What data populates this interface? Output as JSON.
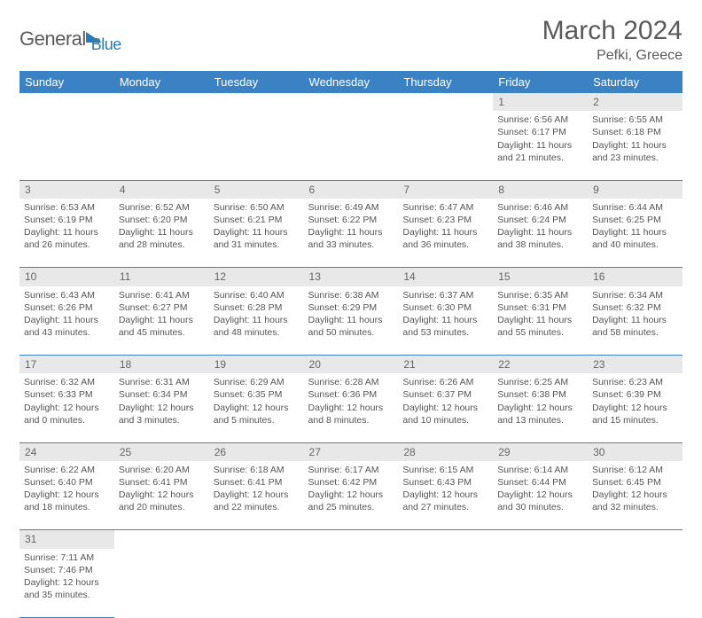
{
  "logo": {
    "text1": "General",
    "text2": "Blue"
  },
  "title": "March 2024",
  "location": "Pefki, Greece",
  "colors": {
    "header_bg": "#3b82c4",
    "header_text": "#ffffff",
    "daynum_bg": "#e8e8e8",
    "cell_border": "#3b82c4",
    "text": "#555555",
    "logo_blue": "#2a7ab8"
  },
  "days_of_week": [
    "Sunday",
    "Monday",
    "Tuesday",
    "Wednesday",
    "Thursday",
    "Friday",
    "Saturday"
  ],
  "weeks": [
    [
      null,
      null,
      null,
      null,
      null,
      {
        "n": "1",
        "sunrise": "6:56 AM",
        "sunset": "6:17 PM",
        "daylight": "11 hours and 21 minutes."
      },
      {
        "n": "2",
        "sunrise": "6:55 AM",
        "sunset": "6:18 PM",
        "daylight": "11 hours and 23 minutes."
      }
    ],
    [
      {
        "n": "3",
        "sunrise": "6:53 AM",
        "sunset": "6:19 PM",
        "daylight": "11 hours and 26 minutes."
      },
      {
        "n": "4",
        "sunrise": "6:52 AM",
        "sunset": "6:20 PM",
        "daylight": "11 hours and 28 minutes."
      },
      {
        "n": "5",
        "sunrise": "6:50 AM",
        "sunset": "6:21 PM",
        "daylight": "11 hours and 31 minutes."
      },
      {
        "n": "6",
        "sunrise": "6:49 AM",
        "sunset": "6:22 PM",
        "daylight": "11 hours and 33 minutes."
      },
      {
        "n": "7",
        "sunrise": "6:47 AM",
        "sunset": "6:23 PM",
        "daylight": "11 hours and 36 minutes."
      },
      {
        "n": "8",
        "sunrise": "6:46 AM",
        "sunset": "6:24 PM",
        "daylight": "11 hours and 38 minutes."
      },
      {
        "n": "9",
        "sunrise": "6:44 AM",
        "sunset": "6:25 PM",
        "daylight": "11 hours and 40 minutes."
      }
    ],
    [
      {
        "n": "10",
        "sunrise": "6:43 AM",
        "sunset": "6:26 PM",
        "daylight": "11 hours and 43 minutes."
      },
      {
        "n": "11",
        "sunrise": "6:41 AM",
        "sunset": "6:27 PM",
        "daylight": "11 hours and 45 minutes."
      },
      {
        "n": "12",
        "sunrise": "6:40 AM",
        "sunset": "6:28 PM",
        "daylight": "11 hours and 48 minutes."
      },
      {
        "n": "13",
        "sunrise": "6:38 AM",
        "sunset": "6:29 PM",
        "daylight": "11 hours and 50 minutes."
      },
      {
        "n": "14",
        "sunrise": "6:37 AM",
        "sunset": "6:30 PM",
        "daylight": "11 hours and 53 minutes."
      },
      {
        "n": "15",
        "sunrise": "6:35 AM",
        "sunset": "6:31 PM",
        "daylight": "11 hours and 55 minutes."
      },
      {
        "n": "16",
        "sunrise": "6:34 AM",
        "sunset": "6:32 PM",
        "daylight": "11 hours and 58 minutes."
      }
    ],
    [
      {
        "n": "17",
        "sunrise": "6:32 AM",
        "sunset": "6:33 PM",
        "daylight": "12 hours and 0 minutes."
      },
      {
        "n": "18",
        "sunrise": "6:31 AM",
        "sunset": "6:34 PM",
        "daylight": "12 hours and 3 minutes."
      },
      {
        "n": "19",
        "sunrise": "6:29 AM",
        "sunset": "6:35 PM",
        "daylight": "12 hours and 5 minutes."
      },
      {
        "n": "20",
        "sunrise": "6:28 AM",
        "sunset": "6:36 PM",
        "daylight": "12 hours and 8 minutes."
      },
      {
        "n": "21",
        "sunrise": "6:26 AM",
        "sunset": "6:37 PM",
        "daylight": "12 hours and 10 minutes."
      },
      {
        "n": "22",
        "sunrise": "6:25 AM",
        "sunset": "6:38 PM",
        "daylight": "12 hours and 13 minutes."
      },
      {
        "n": "23",
        "sunrise": "6:23 AM",
        "sunset": "6:39 PM",
        "daylight": "12 hours and 15 minutes."
      }
    ],
    [
      {
        "n": "24",
        "sunrise": "6:22 AM",
        "sunset": "6:40 PM",
        "daylight": "12 hours and 18 minutes."
      },
      {
        "n": "25",
        "sunrise": "6:20 AM",
        "sunset": "6:41 PM",
        "daylight": "12 hours and 20 minutes."
      },
      {
        "n": "26",
        "sunrise": "6:18 AM",
        "sunset": "6:41 PM",
        "daylight": "12 hours and 22 minutes."
      },
      {
        "n": "27",
        "sunrise": "6:17 AM",
        "sunset": "6:42 PM",
        "daylight": "12 hours and 25 minutes."
      },
      {
        "n": "28",
        "sunrise": "6:15 AM",
        "sunset": "6:43 PM",
        "daylight": "12 hours and 27 minutes."
      },
      {
        "n": "29",
        "sunrise": "6:14 AM",
        "sunset": "6:44 PM",
        "daylight": "12 hours and 30 minutes."
      },
      {
        "n": "30",
        "sunrise": "6:12 AM",
        "sunset": "6:45 PM",
        "daylight": "12 hours and 32 minutes."
      }
    ],
    [
      {
        "n": "31",
        "sunrise": "7:11 AM",
        "sunset": "7:46 PM",
        "daylight": "12 hours and 35 minutes."
      },
      null,
      null,
      null,
      null,
      null,
      null
    ]
  ],
  "labels": {
    "sunrise": "Sunrise:",
    "sunset": "Sunset:",
    "daylight": "Daylight:"
  }
}
